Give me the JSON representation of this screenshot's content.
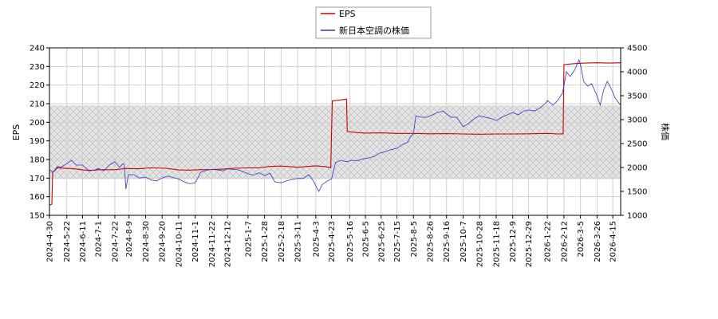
{
  "chart_data": {
    "type": "line",
    "legend": {
      "placement": "top-center",
      "entries": [
        {
          "label": "EPS",
          "color": "#cc0000"
        },
        {
          "label": "新日本空調の株価",
          "color": "#3333cc"
        }
      ]
    },
    "ylabel_left": "EPS",
    "ylabel_right": "株価",
    "ylim_left": [
      150,
      240
    ],
    "ylim_right": [
      1000,
      4500
    ],
    "yticks_left": [
      "150",
      "160",
      "170",
      "180",
      "190",
      "200",
      "210",
      "220",
      "230",
      "240"
    ],
    "yticks_right": [
      "1000",
      "1500",
      "2000",
      "2500",
      "3000",
      "3500",
      "4000",
      "4500"
    ],
    "xlim": [
      "2024-04-30",
      "2026-04-25"
    ],
    "xticks": [
      "2024-4-30",
      "2024-5-22",
      "2024-6-11",
      "2024-7-1",
      "2024-7-22",
      "2024-8-9",
      "2024-8-30",
      "2024-9-20",
      "2024-10-11",
      "2024-11-1",
      "2024-11-22",
      "2024-12-12",
      "2025-1-7",
      "2025-1-28",
      "2025-2-18",
      "2025-3-11",
      "2025-4-3",
      "2025-4-23",
      "2025-5-16",
      "2025-6-5",
      "2025-6-25",
      "2025-7-15",
      "2025-8-5",
      "2025-8-26",
      "2025-9-16",
      "2025-10-7",
      "2025-10-28",
      "2025-11-18",
      "2025-12-9",
      "2025-12-29",
      "2026-1-22",
      "2026-2-12",
      "2026-3-5",
      "2026-3-26",
      "2026-4-15"
    ],
    "grid": true,
    "shaded_band_left": [
      169.5,
      209
    ],
    "series": [
      {
        "name": "EPS",
        "axis": "left",
        "color": "#cc0000",
        "points": [
          [
            "2024-04-30",
            155.5
          ],
          [
            "2024-05-03",
            156
          ],
          [
            "2024-05-04",
            173
          ],
          [
            "2024-05-10",
            175.5
          ],
          [
            "2024-06-01",
            175
          ],
          [
            "2024-06-10",
            174.5
          ],
          [
            "2024-06-20",
            174
          ],
          [
            "2024-07-01",
            174.5
          ],
          [
            "2024-07-22",
            174.5
          ],
          [
            "2024-08-05",
            175.2
          ],
          [
            "2024-08-20",
            175
          ],
          [
            "2024-09-05",
            175.5
          ],
          [
            "2024-09-25",
            175.3
          ],
          [
            "2024-10-11",
            174.4
          ],
          [
            "2024-10-25",
            174.3
          ],
          [
            "2024-11-05",
            174.5
          ],
          [
            "2024-11-22",
            174.6
          ],
          [
            "2024-12-05",
            174.8
          ],
          [
            "2024-12-20",
            175.3
          ],
          [
            "2025-01-07",
            175.5
          ],
          [
            "2025-01-20",
            175.5
          ],
          [
            "2025-02-05",
            176.3
          ],
          [
            "2025-02-18",
            176.5
          ],
          [
            "2025-03-01",
            176.2
          ],
          [
            "2025-03-11",
            175.8
          ],
          [
            "2025-03-25",
            176.3
          ],
          [
            "2025-04-03",
            176.6
          ],
          [
            "2025-04-15",
            176.2
          ],
          [
            "2025-04-22",
            175.6
          ],
          [
            "2025-04-24",
            211.5
          ],
          [
            "2025-05-05",
            212
          ],
          [
            "2025-05-12",
            212.5
          ],
          [
            "2025-05-13",
            195
          ],
          [
            "2025-05-25",
            194.5
          ],
          [
            "2025-06-05",
            194.2
          ],
          [
            "2025-06-25",
            194.3
          ],
          [
            "2025-07-15",
            194
          ],
          [
            "2025-08-05",
            194
          ],
          [
            "2025-08-26",
            193.8
          ],
          [
            "2025-09-16",
            193.9
          ],
          [
            "2025-10-07",
            193.7
          ],
          [
            "2025-10-28",
            193.6
          ],
          [
            "2025-11-18",
            193.7
          ],
          [
            "2025-12-09",
            193.7
          ],
          [
            "2025-12-29",
            193.8
          ],
          [
            "2026-01-22",
            194
          ],
          [
            "2026-02-05",
            193.7
          ],
          [
            "2026-02-11",
            193.8
          ],
          [
            "2026-02-12",
            231
          ],
          [
            "2026-02-25",
            231.5
          ],
          [
            "2026-03-10",
            231.8
          ],
          [
            "2026-03-26",
            232
          ],
          [
            "2026-04-10",
            231.8
          ],
          [
            "2026-04-25",
            232
          ]
        ]
      },
      {
        "name": "新日本空調の株価",
        "axis": "right",
        "color": "#3333cc",
        "points": [
          [
            "2024-04-30",
            1960
          ],
          [
            "2024-05-05",
            1900
          ],
          [
            "2024-05-10",
            2020
          ],
          [
            "2024-05-15",
            2010
          ],
          [
            "2024-05-22",
            2080
          ],
          [
            "2024-05-28",
            2150
          ],
          [
            "2024-06-03",
            2050
          ],
          [
            "2024-06-11",
            2050
          ],
          [
            "2024-06-18",
            1950
          ],
          [
            "2024-06-25",
            1940
          ],
          [
            "2024-07-01",
            1980
          ],
          [
            "2024-07-08",
            1930
          ],
          [
            "2024-07-15",
            2050
          ],
          [
            "2024-07-22",
            2120
          ],
          [
            "2024-07-28",
            2000
          ],
          [
            "2024-08-01",
            2080
          ],
          [
            "2024-08-03",
            2060
          ],
          [
            "2024-08-05",
            1550
          ],
          [
            "2024-08-08",
            1850
          ],
          [
            "2024-08-15",
            1850
          ],
          [
            "2024-08-22",
            1780
          ],
          [
            "2024-08-30",
            1800
          ],
          [
            "2024-09-06",
            1740
          ],
          [
            "2024-09-13",
            1720
          ],
          [
            "2024-09-20",
            1780
          ],
          [
            "2024-09-27",
            1820
          ],
          [
            "2024-10-04",
            1790
          ],
          [
            "2024-10-11",
            1760
          ],
          [
            "2024-10-18",
            1700
          ],
          [
            "2024-10-25",
            1660
          ],
          [
            "2024-11-01",
            1680
          ],
          [
            "2024-11-08",
            1900
          ],
          [
            "2024-11-15",
            1940
          ],
          [
            "2024-11-22",
            1960
          ],
          [
            "2024-11-29",
            1950
          ],
          [
            "2024-12-06",
            1930
          ],
          [
            "2024-12-12",
            1970
          ],
          [
            "2024-12-19",
            1960
          ],
          [
            "2024-12-26",
            1950
          ],
          [
            "2025-01-07",
            1870
          ],
          [
            "2025-01-14",
            1840
          ],
          [
            "2025-01-21",
            1890
          ],
          [
            "2025-01-28",
            1830
          ],
          [
            "2025-02-04",
            1880
          ],
          [
            "2025-02-10",
            1700
          ],
          [
            "2025-02-18",
            1680
          ],
          [
            "2025-02-25",
            1720
          ],
          [
            "2025-03-04",
            1750
          ],
          [
            "2025-03-11",
            1770
          ],
          [
            "2025-03-18",
            1770
          ],
          [
            "2025-03-25",
            1850
          ],
          [
            "2025-03-31",
            1720
          ],
          [
            "2025-04-04",
            1580
          ],
          [
            "2025-04-07",
            1500
          ],
          [
            "2025-04-11",
            1640
          ],
          [
            "2025-04-18",
            1720
          ],
          [
            "2025-04-23",
            1760
          ],
          [
            "2025-04-28",
            2100
          ],
          [
            "2025-05-05",
            2150
          ],
          [
            "2025-05-12",
            2120
          ],
          [
            "2025-05-19",
            2150
          ],
          [
            "2025-05-26",
            2140
          ],
          [
            "2025-06-02",
            2180
          ],
          [
            "2025-06-09",
            2200
          ],
          [
            "2025-06-16",
            2230
          ],
          [
            "2025-06-23",
            2300
          ],
          [
            "2025-06-30",
            2330
          ],
          [
            "2025-07-07",
            2370
          ],
          [
            "2025-07-15",
            2400
          ],
          [
            "2025-07-22",
            2480
          ],
          [
            "2025-07-29",
            2530
          ],
          [
            "2025-08-01",
            2650
          ],
          [
            "2025-08-05",
            2700
          ],
          [
            "2025-08-08",
            3080
          ],
          [
            "2025-08-15",
            3050
          ],
          [
            "2025-08-22",
            3050
          ],
          [
            "2025-08-29",
            3100
          ],
          [
            "2025-09-05",
            3150
          ],
          [
            "2025-09-12",
            3180
          ],
          [
            "2025-09-16",
            3120
          ],
          [
            "2025-09-22",
            3050
          ],
          [
            "2025-09-29",
            3050
          ],
          [
            "2025-10-03",
            2950
          ],
          [
            "2025-10-07",
            2850
          ],
          [
            "2025-10-14",
            2920
          ],
          [
            "2025-10-21",
            3020
          ],
          [
            "2025-10-28",
            3080
          ],
          [
            "2025-11-04",
            3050
          ],
          [
            "2025-11-11",
            3030
          ],
          [
            "2025-11-18",
            2980
          ],
          [
            "2025-11-25",
            3050
          ],
          [
            "2025-12-02",
            3100
          ],
          [
            "2025-12-09",
            3150
          ],
          [
            "2025-12-16",
            3100
          ],
          [
            "2025-12-23",
            3180
          ],
          [
            "2025-12-29",
            3200
          ],
          [
            "2026-01-06",
            3180
          ],
          [
            "2026-01-13",
            3250
          ],
          [
            "2026-01-20",
            3350
          ],
          [
            "2026-01-22",
            3400
          ],
          [
            "2026-01-29",
            3300
          ],
          [
            "2026-02-05",
            3420
          ],
          [
            "2026-02-10",
            3550
          ],
          [
            "2026-02-12",
            3700
          ],
          [
            "2026-02-15",
            4000
          ],
          [
            "2026-02-20",
            3900
          ],
          [
            "2026-02-26",
            4050
          ],
          [
            "2026-03-03",
            4250
          ],
          [
            "2026-03-05",
            4150
          ],
          [
            "2026-03-09",
            3800
          ],
          [
            "2026-03-14",
            3700
          ],
          [
            "2026-03-19",
            3750
          ],
          [
            "2026-03-26",
            3500
          ],
          [
            "2026-03-30",
            3300
          ],
          [
            "2026-04-03",
            3600
          ],
          [
            "2026-04-08",
            3800
          ],
          [
            "2026-04-13",
            3650
          ],
          [
            "2026-04-18",
            3450
          ],
          [
            "2026-04-25",
            3300
          ]
        ]
      }
    ]
  }
}
